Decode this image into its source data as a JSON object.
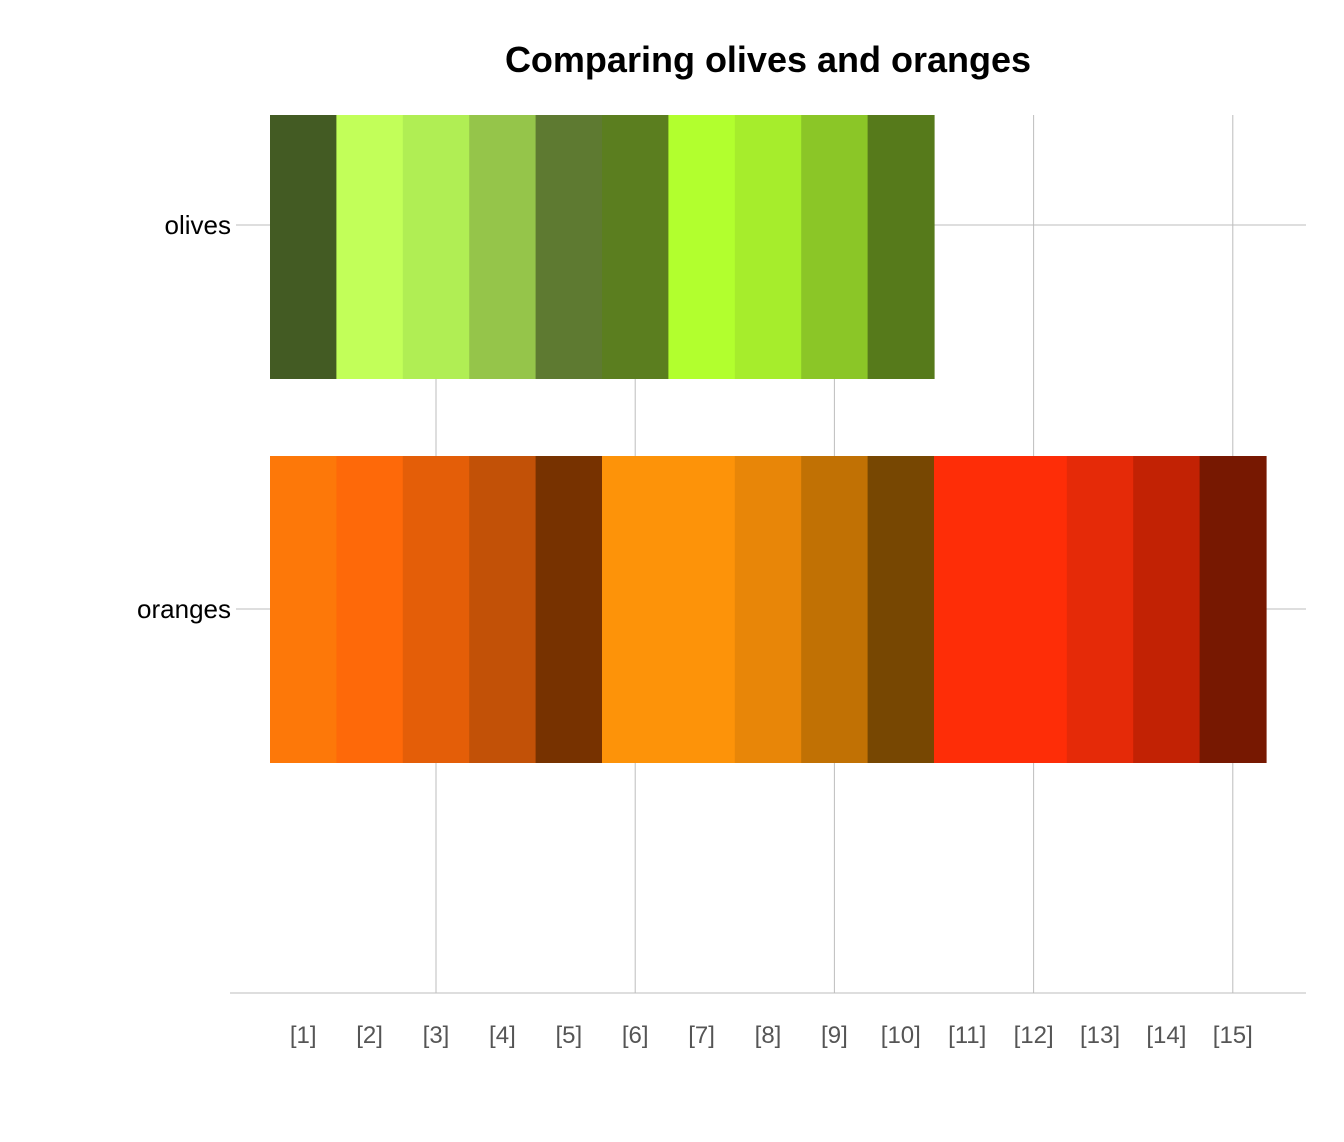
{
  "chart_data": {
    "type": "bar",
    "orientation": "horizontal",
    "title": "Comparing olives and oranges",
    "xlabel": "",
    "ylabel": "",
    "x_tick_labels": [
      "[1]",
      "[2]",
      "[3]",
      "[4]",
      "[5]",
      "[6]",
      "[7]",
      "[8]",
      "[9]",
      "[10]",
      "[11]",
      "[12]",
      "[13]",
      "[14]",
      "[15]"
    ],
    "xlim": [
      0,
      15
    ],
    "grid": true,
    "categories": [
      "olives",
      "oranges"
    ],
    "series": [
      {
        "category": "olives",
        "length": 10,
        "segments": [
          {
            "start": 0,
            "end": 1,
            "color": "#435B23"
          },
          {
            "start": 1,
            "end": 2,
            "color": "#C2FF59"
          },
          {
            "start": 2,
            "end": 3,
            "color": "#B0EE54"
          },
          {
            "start": 3,
            "end": 4,
            "color": "#95C54A"
          },
          {
            "start": 4,
            "end": 5,
            "color": "#5E7A31"
          },
          {
            "start": 5,
            "end": 6,
            "color": "#5B7E1F"
          },
          {
            "start": 6,
            "end": 7,
            "color": "#B2FF2E"
          },
          {
            "start": 7,
            "end": 8,
            "color": "#A6ED2C"
          },
          {
            "start": 8,
            "end": 9,
            "color": "#8BC627"
          },
          {
            "start": 9,
            "end": 10,
            "color": "#567A1B"
          }
        ]
      },
      {
        "category": "oranges",
        "length": 15,
        "segments": [
          {
            "start": 0,
            "end": 1,
            "color": "#FD7809"
          },
          {
            "start": 1,
            "end": 2,
            "color": "#FE6909"
          },
          {
            "start": 2,
            "end": 3,
            "color": "#E45E08"
          },
          {
            "start": 3,
            "end": 4,
            "color": "#C25107"
          },
          {
            "start": 4,
            "end": 5,
            "color": "#773200"
          },
          {
            "start": 5,
            "end": 7,
            "color": "#FD9309"
          },
          {
            "start": 7,
            "end": 8,
            "color": "#E88608"
          },
          {
            "start": 8,
            "end": 9,
            "color": "#C17104"
          },
          {
            "start": 9,
            "end": 10,
            "color": "#774702"
          },
          {
            "start": 10,
            "end": 12,
            "color": "#FE2D07"
          },
          {
            "start": 12,
            "end": 13,
            "color": "#E52A08"
          },
          {
            "start": 13,
            "end": 14,
            "color": "#C22204"
          },
          {
            "start": 14,
            "end": 15,
            "color": "#771801"
          }
        ]
      }
    ]
  }
}
